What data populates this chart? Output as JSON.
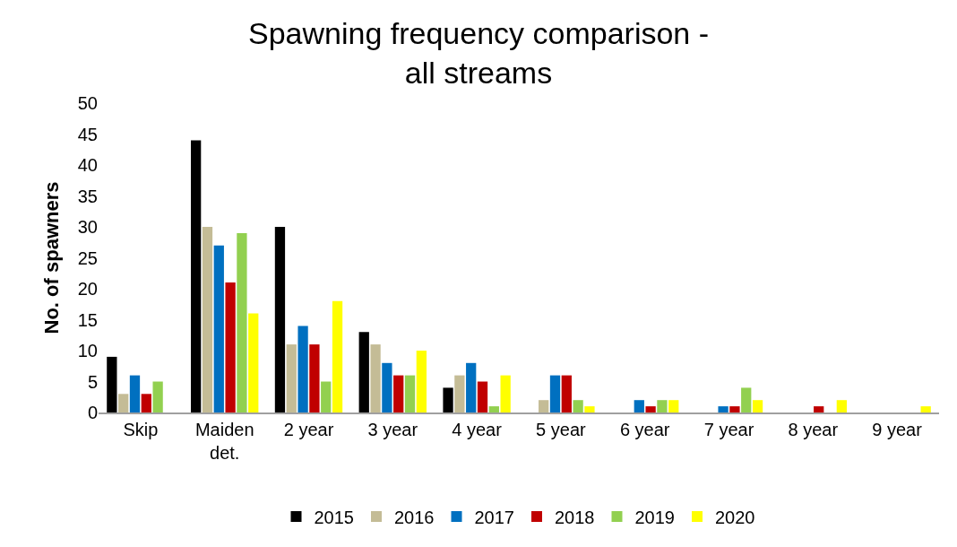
{
  "chart_data": {
    "type": "bar",
    "title": "Spawning frequency comparison -\nall streams",
    "ylabel": "No. of spawners",
    "categories": [
      "Skip",
      "Maiden\ndet.",
      "2 year",
      "3 year",
      "4 year",
      "5 year",
      "6 year",
      "7 year",
      "8 year",
      "9 year"
    ],
    "series": [
      {
        "name": "2015",
        "color": "#000000",
        "values": [
          9,
          44,
          30,
          13,
          4,
          null,
          null,
          null,
          null,
          null
        ]
      },
      {
        "name": "2016",
        "color": "#c4bc96",
        "values": [
          3,
          30,
          11,
          11,
          6,
          2,
          null,
          null,
          null,
          null
        ]
      },
      {
        "name": "2017",
        "color": "#0070c0",
        "values": [
          6,
          27,
          14,
          8,
          8,
          6,
          2,
          1,
          null,
          null
        ]
      },
      {
        "name": "2018",
        "color": "#c00000",
        "values": [
          3,
          21,
          11,
          6,
          5,
          6,
          1,
          1,
          1,
          null
        ]
      },
      {
        "name": "2019",
        "color": "#92d050",
        "values": [
          5,
          29,
          5,
          6,
          1,
          2,
          2,
          4,
          null,
          null
        ]
      },
      {
        "name": "2020",
        "color": "#ffff00",
        "values": [
          null,
          16,
          18,
          10,
          6,
          1,
          2,
          2,
          2,
          1
        ]
      }
    ],
    "ylim": [
      0,
      50
    ],
    "yticks": [
      0,
      5,
      10,
      15,
      20,
      25,
      30,
      35,
      40,
      45,
      50
    ],
    "grid": false,
    "legend": "bottom"
  }
}
